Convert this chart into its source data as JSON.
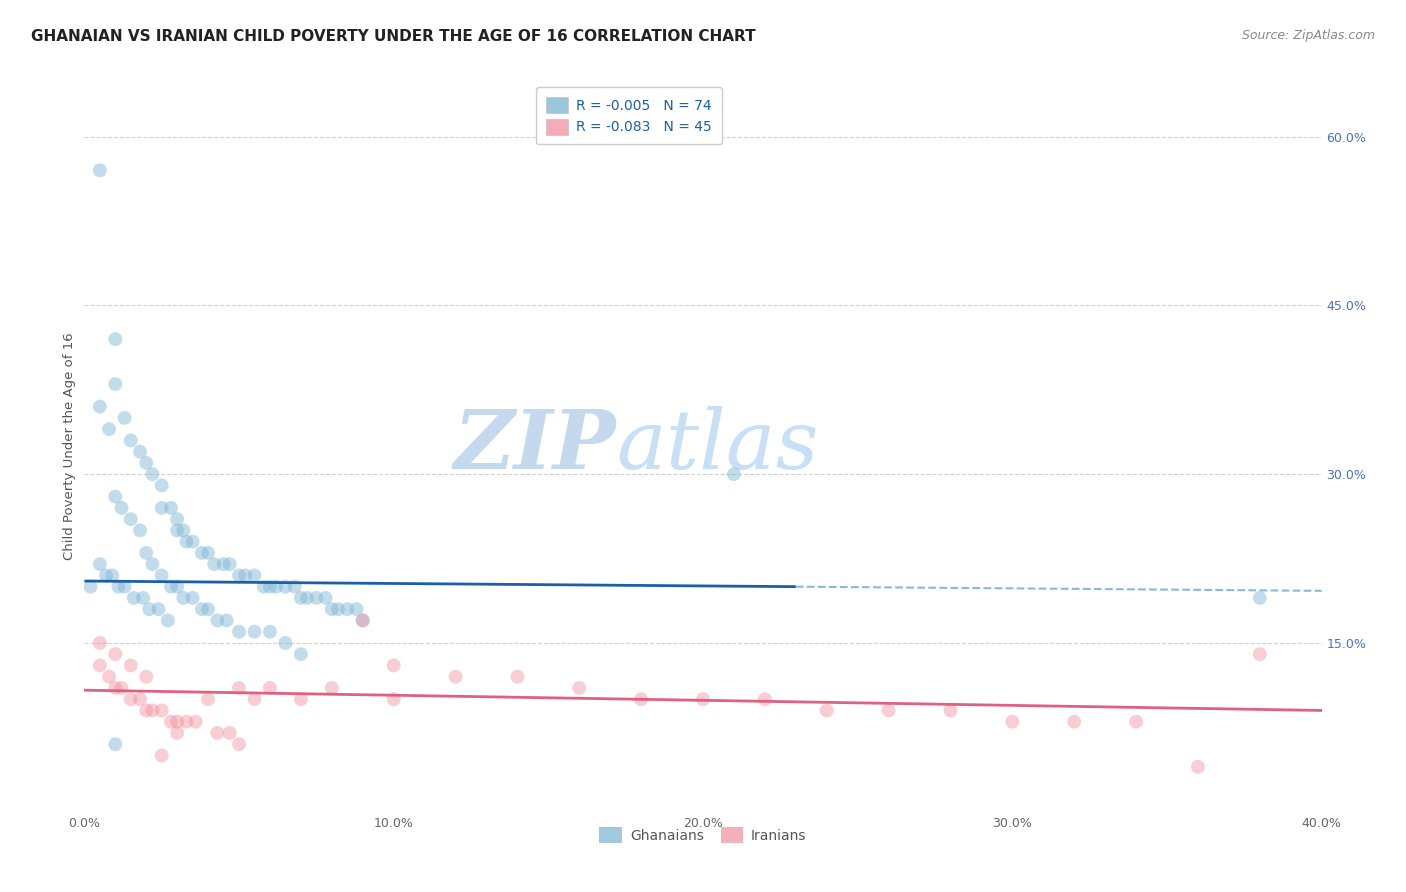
{
  "title": "GHANAIAN VS IRANIAN CHILD POVERTY UNDER THE AGE OF 16 CORRELATION CHART",
  "source": "Source: ZipAtlas.com",
  "ylabel": "Child Poverty Under the Age of 16",
  "xlim": [
    0.0,
    0.4
  ],
  "ylim": [
    0.0,
    0.65
  ],
  "xtick_labels": [
    "0.0%",
    "",
    "10.0%",
    "",
    "20.0%",
    "",
    "30.0%",
    "",
    "40.0%"
  ],
  "xtick_vals": [
    0.0,
    0.05,
    0.1,
    0.15,
    0.2,
    0.25,
    0.3,
    0.35,
    0.4
  ],
  "ytick_labels_right": [
    "15.0%",
    "30.0%",
    "45.0%",
    "60.0%"
  ],
  "ytick_vals_right": [
    0.15,
    0.3,
    0.45,
    0.6
  ],
  "ghanaian_color": "#7ab3d4",
  "iranian_color": "#f090a0",
  "ghanaian_line_color": "#1a5fa8",
  "iranian_line_color": "#e06080",
  "dashed_line_color": "#7ab3d4",
  "watermark_color": "#dce9f5",
  "background_color": "#ffffff",
  "grid_color": "#cccccc",
  "ghanaian_x": [
    0.005,
    0.01,
    0.01,
    0.013,
    0.015,
    0.018,
    0.02,
    0.022,
    0.025,
    0.025,
    0.028,
    0.03,
    0.03,
    0.032,
    0.033,
    0.035,
    0.038,
    0.04,
    0.042,
    0.045,
    0.047,
    0.05,
    0.052,
    0.055,
    0.058,
    0.06,
    0.062,
    0.065,
    0.068,
    0.07,
    0.072,
    0.075,
    0.078,
    0.08,
    0.082,
    0.085,
    0.088,
    0.09,
    0.005,
    0.008,
    0.01,
    0.012,
    0.015,
    0.018,
    0.02,
    0.022,
    0.025,
    0.028,
    0.03,
    0.032,
    0.035,
    0.038,
    0.04,
    0.043,
    0.046,
    0.05,
    0.055,
    0.06,
    0.065,
    0.07,
    0.005,
    0.007,
    0.009,
    0.011,
    0.013,
    0.016,
    0.019,
    0.021,
    0.024,
    0.027,
    0.21,
    0.01,
    0.38,
    0.002
  ],
  "ghanaian_y": [
    0.57,
    0.42,
    0.38,
    0.35,
    0.33,
    0.32,
    0.31,
    0.3,
    0.29,
    0.27,
    0.27,
    0.26,
    0.25,
    0.25,
    0.24,
    0.24,
    0.23,
    0.23,
    0.22,
    0.22,
    0.22,
    0.21,
    0.21,
    0.21,
    0.2,
    0.2,
    0.2,
    0.2,
    0.2,
    0.19,
    0.19,
    0.19,
    0.19,
    0.18,
    0.18,
    0.18,
    0.18,
    0.17,
    0.36,
    0.34,
    0.28,
    0.27,
    0.26,
    0.25,
    0.23,
    0.22,
    0.21,
    0.2,
    0.2,
    0.19,
    0.19,
    0.18,
    0.18,
    0.17,
    0.17,
    0.16,
    0.16,
    0.16,
    0.15,
    0.14,
    0.22,
    0.21,
    0.21,
    0.2,
    0.2,
    0.19,
    0.19,
    0.18,
    0.18,
    0.17,
    0.3,
    0.06,
    0.19,
    0.2
  ],
  "iranian_x": [
    0.005,
    0.008,
    0.01,
    0.012,
    0.015,
    0.018,
    0.02,
    0.022,
    0.025,
    0.028,
    0.03,
    0.033,
    0.036,
    0.04,
    0.043,
    0.047,
    0.05,
    0.055,
    0.06,
    0.07,
    0.08,
    0.09,
    0.1,
    0.12,
    0.14,
    0.16,
    0.18,
    0.2,
    0.22,
    0.24,
    0.26,
    0.28,
    0.3,
    0.32,
    0.34,
    0.36,
    0.38,
    0.005,
    0.01,
    0.015,
    0.02,
    0.025,
    0.03,
    0.05,
    0.1
  ],
  "iranian_y": [
    0.13,
    0.12,
    0.11,
    0.11,
    0.1,
    0.1,
    0.09,
    0.09,
    0.09,
    0.08,
    0.08,
    0.08,
    0.08,
    0.1,
    0.07,
    0.07,
    0.06,
    0.1,
    0.11,
    0.1,
    0.11,
    0.17,
    0.13,
    0.12,
    0.12,
    0.11,
    0.1,
    0.1,
    0.1,
    0.09,
    0.09,
    0.09,
    0.08,
    0.08,
    0.08,
    0.04,
    0.14,
    0.15,
    0.14,
    0.13,
    0.12,
    0.05,
    0.07,
    0.11,
    0.1
  ],
  "title_fontsize": 11,
  "source_fontsize": 9,
  "axis_label_fontsize": 9.5,
  "tick_fontsize": 9,
  "legend_fontsize": 10,
  "marker_size": 100,
  "marker_alpha": 0.45,
  "gh_trend": [
    0.0,
    0.205,
    0.23,
    0.2
  ],
  "ir_trend": [
    0.0,
    0.108,
    0.4,
    0.09
  ],
  "dashed_line_y": 0.197,
  "legend_R_N": [
    "R = -0.005   N = 74",
    "R = -0.083   N = 45"
  ],
  "bottom_legend": [
    "Ghanaians",
    "Iranians"
  ]
}
